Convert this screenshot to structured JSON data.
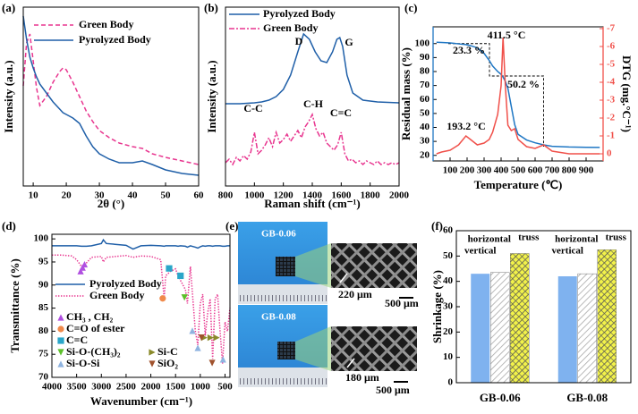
{
  "chart_data": [
    {
      "type": "line",
      "panel_label": "(a)",
      "x_label": "2θ (°)",
      "y_label": "Intensity (a.u.)",
      "x": [
        7,
        8,
        9,
        10,
        11,
        12,
        14,
        16,
        18,
        19,
        20,
        22,
        24,
        26,
        28,
        30,
        33,
        36,
        40,
        43,
        46,
        50,
        55,
        60
      ],
      "xlim": [
        7,
        60
      ],
      "xticks": [
        10,
        20,
        30,
        40,
        50,
        60
      ],
      "ylim": [
        0,
        100
      ],
      "series": [
        {
          "name": "Green Body",
          "color": "#e8358f",
          "dash": "dashed",
          "values": [
            56,
            80,
            85,
            70,
            55,
            45,
            50,
            58,
            64,
            66,
            65,
            58,
            50,
            42,
            36,
            31,
            27,
            24,
            22,
            21,
            18,
            16,
            14,
            12
          ]
        },
        {
          "name": "Pyrolyzed Body",
          "color": "#1f5fa8",
          "dash": "solid",
          "values": [
            95,
            82,
            72,
            66,
            61,
            57,
            52,
            47,
            43,
            41,
            40,
            38,
            35,
            28,
            22,
            18,
            15,
            13,
            13,
            14,
            12,
            9,
            7,
            6
          ]
        }
      ]
    },
    {
      "type": "line",
      "panel_label": "(b)",
      "x_label": "Raman shift (cm⁻¹)",
      "y_label": "Intensity (a.u.)",
      "xlim": [
        800,
        2000
      ],
      "xticks": [
        800,
        1000,
        1200,
        1400,
        1600,
        1800,
        2000
      ],
      "ylim": [
        0,
        100
      ],
      "annotations": [
        "D",
        "G",
        "C-C",
        "C-H",
        "C=C"
      ],
      "series": [
        {
          "name": "Pyrolyzed Body",
          "color": "#1f5fa8",
          "dash": "solid",
          "x": [
            800,
            900,
            1000,
            1050,
            1100,
            1150,
            1200,
            1250,
            1300,
            1340,
            1380,
            1420,
            1460,
            1500,
            1540,
            1570,
            1590,
            1610,
            1640,
            1680,
            1750,
            1850,
            2000
          ],
          "values": [
            46,
            46,
            46.5,
            47,
            48,
            50,
            54,
            62,
            75,
            85,
            82,
            75,
            70,
            69,
            75,
            82,
            83,
            78,
            62,
            52,
            48,
            47,
            46.5
          ]
        },
        {
          "name": "Green Body",
          "color": "#e8358f",
          "dash": "dashdot",
          "x": [
            800,
            825,
            850,
            875,
            900,
            925,
            950,
            975,
            1000,
            1025,
            1050,
            1075,
            1100,
            1125,
            1150,
            1175,
            1200,
            1225,
            1250,
            1275,
            1300,
            1325,
            1350,
            1375,
            1400,
            1425,
            1450,
            1475,
            1500,
            1525,
            1550,
            1575,
            1600,
            1625,
            1650,
            1675,
            1700,
            1725,
            1750,
            1775,
            1800,
            1825,
            1850,
            1875,
            1900,
            1925,
            1950,
            1975,
            2000
          ],
          "values": [
            13,
            15,
            12,
            16,
            14,
            17,
            15,
            19,
            30,
            18,
            20,
            23,
            27,
            22,
            30,
            24,
            26,
            29,
            25,
            28,
            31,
            27,
            33,
            36,
            40,
            32,
            28,
            30,
            24,
            22,
            20,
            23,
            30,
            18,
            14,
            15,
            13,
            14,
            12,
            14,
            13,
            12,
            14,
            12,
            13,
            12,
            13,
            12,
            13
          ]
        }
      ]
    },
    {
      "type": "line",
      "panel_label": "(c)",
      "x_label": "Temperature (℃)",
      "y_label": "Residual mass (%)",
      "y2_label": "DTG (mg.°C⁻¹)",
      "x": [
        20,
        50,
        100,
        150,
        193.2,
        220,
        260,
        300,
        330,
        350,
        380,
        400,
        411.5,
        425,
        440,
        460,
        480,
        500,
        550,
        600,
        650,
        700,
        800,
        900,
        980
      ],
      "xlim": [
        0,
        1000
      ],
      "xticks": [
        100,
        200,
        300,
        400,
        500,
        600,
        700,
        800,
        900
      ],
      "ylim": [
        16,
        112
      ],
      "yticks": [
        20,
        30,
        40,
        50,
        60,
        70,
        80,
        90,
        100
      ],
      "y2lim": [
        0.4,
        -7.1
      ],
      "y2ticks": [
        0,
        -1,
        -2,
        -3,
        -4,
        -5,
        -6,
        -7
      ],
      "annotations": [
        "23.3 %",
        "411.5 °C",
        "50.2 %",
        "193.2 °C"
      ],
      "series": [
        {
          "color": "#1f77c4",
          "dash": "solid",
          "values": [
            101,
            100.8,
            100.5,
            99.8,
            99.3,
            98.5,
            97,
            93,
            88,
            84,
            80,
            78,
            76,
            73,
            68,
            55,
            42,
            35,
            31,
            29,
            27.5,
            26.5,
            26,
            25.8,
            25.7
          ]
        },
        {
          "color": "#f0504a",
          "dash": "solid",
          "axis": "y2",
          "values": [
            0,
            -0.1,
            -0.2,
            -0.5,
            -1,
            -0.8,
            -0.5,
            -0.6,
            -0.8,
            -1.2,
            -2.2,
            -3.8,
            -6.5,
            -3.8,
            -1.6,
            -1.3,
            -1.4,
            -0.8,
            -0.4,
            -0.3,
            -0.5,
            -0.15,
            0,
            0,
            0
          ]
        }
      ]
    },
    {
      "type": "line",
      "panel_label": "(d)",
      "x_label": "Wavenumber (cm⁻¹)",
      "y_label": "Transmittance (%)",
      "x": [
        4000,
        3800,
        3600,
        3500,
        3400,
        3300,
        3200,
        3000,
        2960,
        2900,
        2500,
        2360,
        2200,
        2000,
        1800,
        1730,
        1700,
        1600,
        1500,
        1450,
        1400,
        1300,
        1260,
        1200,
        1100,
        1050,
        1000,
        950,
        900,
        850,
        800,
        750,
        700,
        650,
        600,
        550,
        500,
        450,
        400
      ],
      "xlim": [
        4000,
        400
      ],
      "xticks": [
        4000,
        3500,
        3000,
        2500,
        2000,
        1500,
        1000,
        500
      ],
      "ylim": [
        70,
        101
      ],
      "yticks": [
        70,
        75,
        80,
        85,
        90,
        95,
        100
      ],
      "series": [
        {
          "name": "Pyrolyzed Body",
          "color": "#1f5fa8",
          "dash": "solid",
          "values": [
            98.5,
            98.5,
            98.5,
            98.5,
            98.4,
            98.4,
            98.5,
            99,
            99.8,
            99,
            98.6,
            97.8,
            98.5,
            98.6,
            98.5,
            98.4,
            98.5,
            98.5,
            98.5,
            98.4,
            98.5,
            98.4,
            98.2,
            98.5,
            98.2,
            98,
            98.3,
            98.5,
            98.4,
            98.5,
            98.5,
            98.4,
            98.5,
            98.5,
            98.5,
            98.4,
            98.4,
            98.5,
            98.5
          ]
        },
        {
          "name": "Green Body",
          "color": "#e8358f",
          "dash": "dotted",
          "values": [
            96.5,
            96.5,
            96.3,
            95.5,
            94,
            94.8,
            96,
            96.2,
            95,
            96,
            96.4,
            96,
            96.3,
            96.2,
            95.5,
            87,
            92,
            93,
            93.5,
            92,
            91,
            89,
            86,
            94,
            80,
            77,
            86,
            88,
            79,
            84,
            87,
            74,
            87,
            88,
            80,
            73,
            82,
            80,
            85
          ]
        }
      ],
      "peak_markers": [
        {
          "label": "CH₃ , CH₂",
          "color": "#b04fe0",
          "shape": "triangle-up",
          "x": [
            3420,
            3380,
            3340
          ],
          "y": [
            93,
            93.8,
            94.5
          ]
        },
        {
          "label": "C=O of ester",
          "color": "#f08a4b",
          "shape": "circle",
          "x": [
            1760
          ],
          "y": [
            87.1
          ]
        },
        {
          "label": "C=C",
          "color": "#2aa6c9",
          "shape": "square",
          "x": [
            1630,
            1400
          ],
          "y": [
            93.6,
            92
          ]
        },
        {
          "label": "Si-O-(CH₃)₂",
          "color": "#5cc02a",
          "shape": "triangle-down",
          "x": [
            1320
          ],
          "y": [
            87.3
          ]
        },
        {
          "label": "Si-O-Si",
          "color": "#8fb3e0",
          "shape": "triangle-up",
          "x": [
            1160,
            1050,
            540
          ],
          "y": [
            80.1,
            76.4,
            73.9
          ]
        },
        {
          "label": "Si-C",
          "color": "#8a8a2a",
          "shape": "triangle-right",
          "x": [
            920,
            790,
            670
          ],
          "y": [
            78.6,
            78.6,
            78.6
          ]
        },
        {
          "label": "SiO₂",
          "color": "#a0522d",
          "shape": "triangle-down",
          "x": [
            975,
            760
          ],
          "y": [
            78.6,
            73.1
          ]
        }
      ]
    },
    {
      "type": "bar",
      "panel_label": "(f)",
      "y_label": "Shrinkage (%)",
      "categories": [
        "GB-0.06",
        "GB-0.08"
      ],
      "ylim": [
        0,
        60
      ],
      "yticks": [
        0,
        10,
        20,
        30,
        40,
        50,
        60
      ],
      "series": [
        {
          "name": "horizontal",
          "color": "#7fb2ef",
          "pattern": "solid",
          "values": [
            43,
            42
          ]
        },
        {
          "name": "vertical",
          "color": "#a8a8a8",
          "pattern": "hatch",
          "values": [
            43.5,
            43
          ]
        },
        {
          "name": "truss",
          "color": "#f2f24a",
          "pattern": "crosshatch",
          "values": [
            51,
            52.5
          ]
        }
      ]
    }
  ],
  "figure_e": {
    "panel_label": "(e)",
    "samples": [
      {
        "name": "GB-0.06",
        "strut": "220 μm",
        "scale": "500 μm"
      },
      {
        "name": "GB-0.08",
        "strut": "180 μm",
        "scale": "500 μm"
      }
    ]
  }
}
